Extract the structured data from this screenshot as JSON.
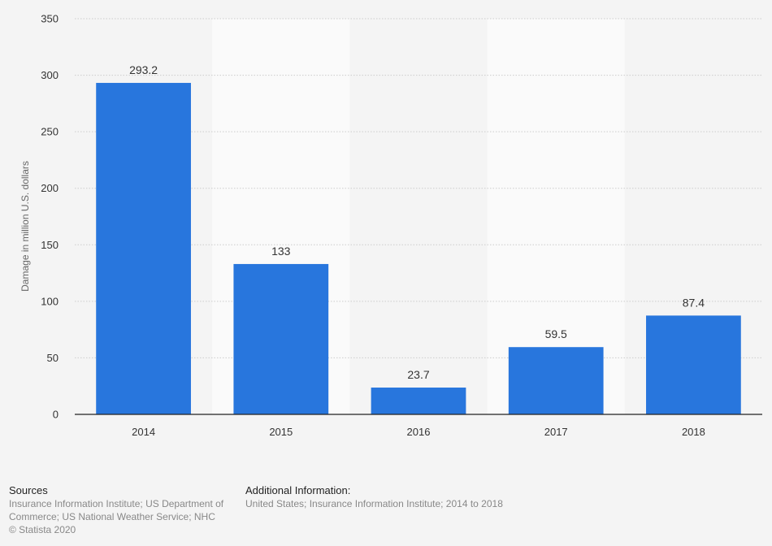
{
  "chart_data": {
    "type": "bar",
    "categories": [
      "2014",
      "2015",
      "2016",
      "2017",
      "2018"
    ],
    "values": [
      293.2,
      133,
      23.7,
      59.5,
      87.4
    ],
    "value_labels": [
      "293.2",
      "133",
      "23.7",
      "59.5",
      "87.4"
    ],
    "title": "",
    "xlabel": "",
    "ylabel": "Damage in million U.S. dollars",
    "ylim": [
      0,
      350
    ],
    "yticks": [
      0,
      50,
      100,
      150,
      200,
      250,
      300,
      350
    ],
    "grid": true,
    "legend": "none",
    "bar_color": "#2876dd"
  },
  "footer": {
    "sources_heading": "Sources",
    "sources_text": "Insurance Information Institute; US Department of Commerce; US National Weather Service; NHC",
    "copyright": "© Statista 2020",
    "additional_heading": "Additional Information:",
    "additional_text": "United States; Insurance Information Institute; 2014 to 2018"
  }
}
